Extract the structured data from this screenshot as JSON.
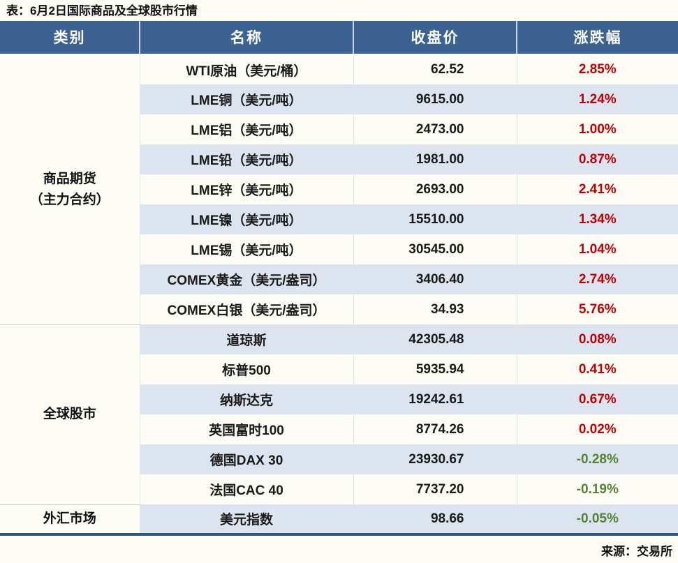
{
  "page": {
    "title": "表：6月2日国际商品及全球股市行情",
    "source": "来源：交易所"
  },
  "colors": {
    "header_bg": "#3C6291",
    "stripe_bg": "#DCE4F0",
    "up_red": "#C00000",
    "down_green": "#548235",
    "bottom_rule_blue": "#2E5A87"
  },
  "chart_data": {
    "type": "table",
    "title": "表：6月2日国际商品及全球股市行情",
    "source": "来源：交易所",
    "columns": [
      "类别",
      "名称",
      "收盘价",
      "涨跌幅"
    ],
    "groups": [
      {
        "category_lines": [
          "商品期货",
          "（主力合约）"
        ],
        "row_count": 9
      },
      {
        "category_lines": [
          "全球股市"
        ],
        "row_count": 6
      },
      {
        "category_lines": [
          "外汇市场"
        ],
        "row_count": 1
      }
    ],
    "rows": [
      {
        "category": "商品期货（主力合约）",
        "name": "WTI原油（美元/桶）",
        "close": "62.52",
        "change": "2.85%",
        "direction": "up"
      },
      {
        "category": "商品期货（主力合约）",
        "name": "LME铜（美元/吨）",
        "close": "9615.00",
        "change": "1.24%",
        "direction": "up"
      },
      {
        "category": "商品期货（主力合约）",
        "name": "LME铝（美元/吨）",
        "close": "2473.00",
        "change": "1.00%",
        "direction": "up"
      },
      {
        "category": "商品期货（主力合约）",
        "name": "LME铅（美元/吨）",
        "close": "1981.00",
        "change": "0.87%",
        "direction": "up"
      },
      {
        "category": "商品期货（主力合约）",
        "name": "LME锌（美元/吨）",
        "close": "2693.00",
        "change": "2.41%",
        "direction": "up"
      },
      {
        "category": "商品期货（主力合约）",
        "name": "LME镍（美元/吨）",
        "close": "15510.00",
        "change": "1.34%",
        "direction": "up"
      },
      {
        "category": "商品期货（主力合约）",
        "name": "LME锡（美元/吨）",
        "close": "30545.00",
        "change": "1.04%",
        "direction": "up"
      },
      {
        "category": "商品期货（主力合约）",
        "name": "COMEX黄金（美元/盎司）",
        "close": "3406.40",
        "change": "2.74%",
        "direction": "up"
      },
      {
        "category": "商品期货（主力合约）",
        "name": "COMEX白银（美元/盎司）",
        "close": "34.93",
        "change": "5.76%",
        "direction": "up"
      },
      {
        "category": "全球股市",
        "name": "道琼斯",
        "close": "42305.48",
        "change": "0.08%",
        "direction": "up"
      },
      {
        "category": "全球股市",
        "name": "标普500",
        "close": "5935.94",
        "change": "0.41%",
        "direction": "up"
      },
      {
        "category": "全球股市",
        "name": "纳斯达克",
        "close": "19242.61",
        "change": "0.67%",
        "direction": "up"
      },
      {
        "category": "全球股市",
        "name": "英国富时100",
        "close": "8774.26",
        "change": "0.02%",
        "direction": "up"
      },
      {
        "category": "全球股市",
        "name": "德国DAX 30",
        "close": "23930.67",
        "change": "-0.28%",
        "direction": "down"
      },
      {
        "category": "全球股市",
        "name": "法国CAC 40",
        "close": "7737.20",
        "change": "-0.19%",
        "direction": "down"
      },
      {
        "category": "外汇市场",
        "name": "美元指数",
        "close": "98.66",
        "change": "-0.05%",
        "direction": "down"
      }
    ]
  }
}
